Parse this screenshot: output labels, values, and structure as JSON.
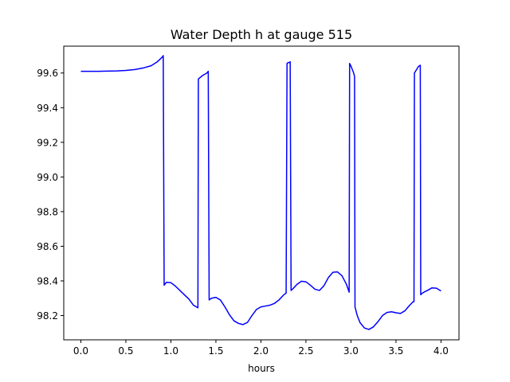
{
  "chart_data": {
    "type": "line",
    "title": "Water Depth h at gauge 515",
    "xlabel": "hours",
    "ylabel": "",
    "xlim": [
      -0.19,
      4.2
    ],
    "ylim": [
      98.06,
      99.755
    ],
    "xticks": [
      0.0,
      0.5,
      1.0,
      1.5,
      2.0,
      2.5,
      3.0,
      3.5,
      4.0
    ],
    "xtick_labels": [
      "0.0",
      "0.5",
      "1.0",
      "1.5",
      "2.0",
      "2.5",
      "3.0",
      "3.5",
      "4.0"
    ],
    "yticks": [
      98.2,
      98.4,
      98.6,
      98.8,
      99.0,
      99.2,
      99.4,
      99.6
    ],
    "ytick_labels": [
      "98.2",
      "98.4",
      "98.6",
      "98.8",
      "99.0",
      "99.2",
      "99.4",
      "99.6"
    ],
    "grid": false,
    "legend": "none",
    "series": [
      {
        "color": "#0000ff",
        "x": [
          0.0,
          0.2,
          0.4,
          0.5,
          0.6,
          0.7,
          0.78,
          0.85,
          0.9,
          0.915,
          0.925,
          0.95,
          1.0,
          1.05,
          1.1,
          1.15,
          1.2,
          1.25,
          1.3,
          1.305,
          1.32,
          1.35,
          1.4,
          1.415,
          1.425,
          1.45,
          1.5,
          1.55,
          1.6,
          1.65,
          1.7,
          1.75,
          1.8,
          1.85,
          1.9,
          1.95,
          2.0,
          2.05,
          2.1,
          2.15,
          2.2,
          2.25,
          2.28,
          2.29,
          2.295,
          2.32,
          2.325,
          2.335,
          2.35,
          2.4,
          2.45,
          2.5,
          2.55,
          2.6,
          2.65,
          2.7,
          2.75,
          2.8,
          2.85,
          2.9,
          2.95,
          2.97,
          2.98,
          2.985,
          3.0,
          3.03,
          3.04,
          3.045,
          3.07,
          3.1,
          3.15,
          3.2,
          3.25,
          3.3,
          3.35,
          3.4,
          3.45,
          3.5,
          3.55,
          3.6,
          3.65,
          3.69,
          3.7,
          3.705,
          3.75,
          3.77,
          3.775,
          3.79,
          3.82,
          3.85,
          3.9,
          3.95,
          4.0
        ],
        "y": [
          99.61,
          99.61,
          99.612,
          99.615,
          99.62,
          99.63,
          99.642,
          99.665,
          99.69,
          99.7,
          98.375,
          98.392,
          98.39,
          98.37,
          98.345,
          98.32,
          98.295,
          98.26,
          98.245,
          99.565,
          99.572,
          99.585,
          99.6,
          99.61,
          98.29,
          98.3,
          98.305,
          98.29,
          98.25,
          98.205,
          98.17,
          98.155,
          98.148,
          98.16,
          98.2,
          98.235,
          98.25,
          98.255,
          98.26,
          98.27,
          98.29,
          98.318,
          98.33,
          99.655,
          99.658,
          99.662,
          99.665,
          98.345,
          98.352,
          98.38,
          98.398,
          98.395,
          98.375,
          98.352,
          98.345,
          98.372,
          98.42,
          98.45,
          98.452,
          98.43,
          98.38,
          98.35,
          98.335,
          99.655,
          99.64,
          99.6,
          99.58,
          98.25,
          98.2,
          98.16,
          98.128,
          98.12,
          98.135,
          98.165,
          98.2,
          98.218,
          98.222,
          98.216,
          98.212,
          98.228,
          98.258,
          98.28,
          98.28,
          99.6,
          99.638,
          99.645,
          98.32,
          98.328,
          98.338,
          98.345,
          98.36,
          98.358,
          98.342
        ]
      }
    ]
  }
}
